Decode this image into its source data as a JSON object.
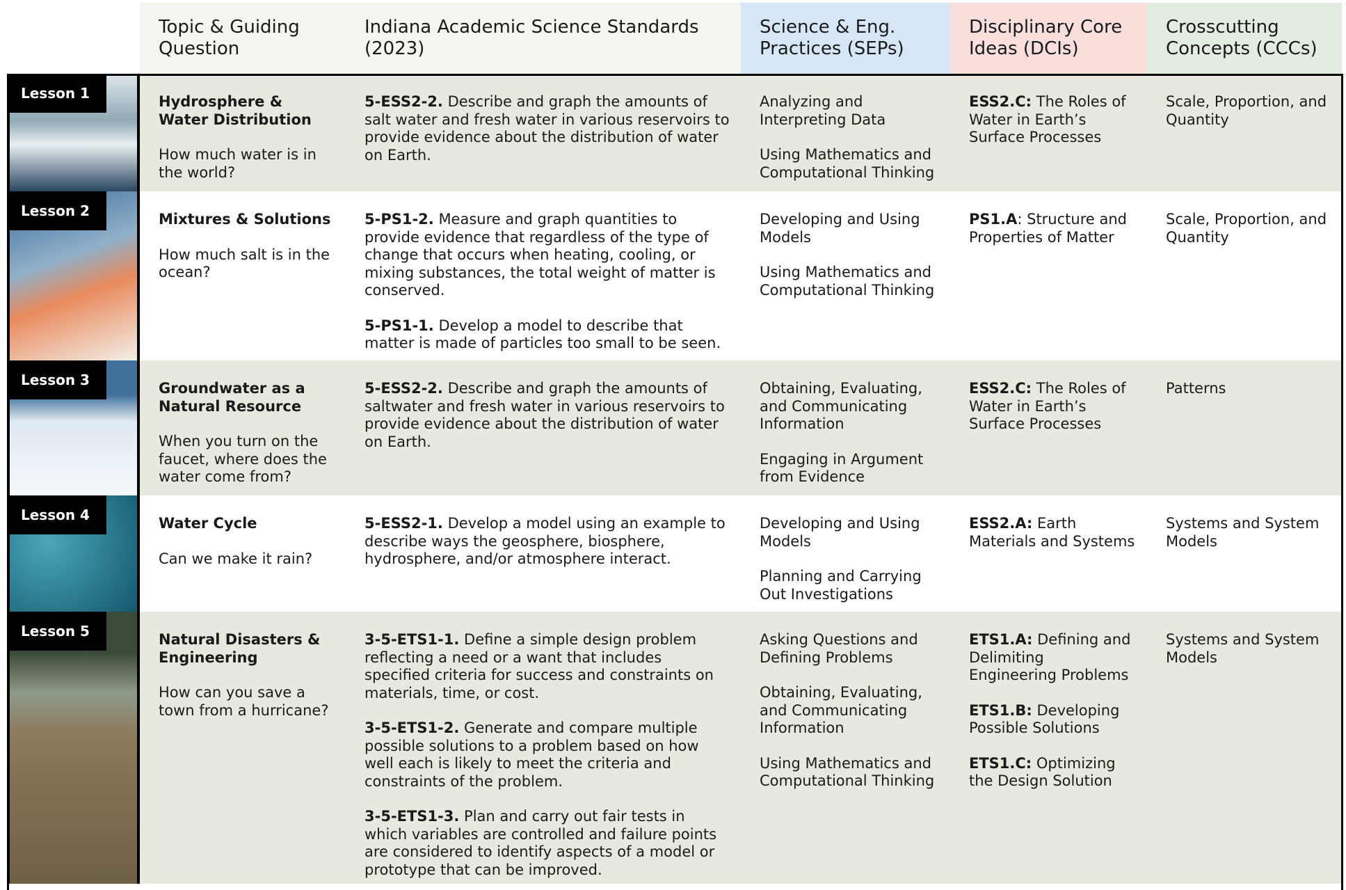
{
  "header": {
    "columns": [
      "Topic & Guiding Question",
      "Indiana Academic Science Standards (2023)",
      "Science & Eng. Practices (SEPs)",
      "Disciplinary Core Ideas (DCIs)",
      "Crosscutting Concepts (CCCs)"
    ]
  },
  "rows": [
    {
      "lesson": "Lesson 1",
      "topic": "Hydrosphere & Water Distribution",
      "question": "How much water is in the world?",
      "standards": [
        {
          "code": "5-ESS2-2.",
          "text": " Describe and graph the amounts of salt water and fresh water in various reservoirs to provide evidence about the distribution of water on Earth."
        }
      ],
      "seps": [
        "Analyzing and Interpreting Data",
        "Using Mathematics and Computational Thinking"
      ],
      "dcis": [
        {
          "code": "ESS2.C:",
          "text": " The Roles of Water in Earth’s Surface Processes"
        }
      ],
      "cccs": [
        "Scale, Proportion, and Quantity"
      ]
    },
    {
      "lesson": "Lesson 2",
      "topic": "Mixtures & Solutions",
      "question": "How much salt is in the ocean?",
      "standards": [
        {
          "code": "5-PS1-2.",
          "text": " Measure and graph quantities to provide evidence that regardless of the type of change that occurs when heating, cooling, or mixing substances, the total weight of matter is conserved."
        },
        {
          "code": "5-PS1-1.",
          "text": " Develop a model to describe that matter is made of particles too small to be seen."
        }
      ],
      "seps": [
        "Developing and Using Models",
        "Using Mathematics and Computational Thinking"
      ],
      "dcis": [
        {
          "code": "PS1.A",
          "text": ": Structure and Properties of Matter"
        }
      ],
      "cccs": [
        "Scale, Proportion, and Quantity"
      ]
    },
    {
      "lesson": "Lesson 3",
      "topic": "Groundwater as a Natural Resource",
      "question": "When you turn on the faucet, where does the water come from?",
      "standards": [
        {
          "code": "5-ESS2-2.",
          "text": " Describe and graph the amounts of saltwater and fresh water in various reservoirs to provide evidence about the distribution of water on Earth."
        }
      ],
      "seps": [
        "Obtaining, Evaluating, and Communicating Information",
        "Engaging in Argument from Evidence"
      ],
      "dcis": [
        {
          "code": "ESS2.C:",
          "text": " The Roles of Water in Earth’s Surface Processes"
        }
      ],
      "cccs": [
        "Patterns"
      ]
    },
    {
      "lesson": "Lesson 4",
      "topic": "Water Cycle",
      "question": "Can we make it rain?",
      "standards": [
        {
          "code": "5-ESS2-1.",
          "text": " Develop a model using an example to describe ways the geosphere, biosphere, hydrosphere, and/or atmosphere interact."
        }
      ],
      "seps": [
        "Developing and Using Models",
        "Planning and Carrying Out Investigations"
      ],
      "dcis": [
        {
          "code": "ESS2.A:",
          "text": " Earth Materials and Systems"
        }
      ],
      "cccs": [
        "Systems and System Models"
      ]
    },
    {
      "lesson": "Lesson 5",
      "topic": "Natural Disasters & Engineering",
      "question": "How can you save a town from a hurricane?",
      "standards": [
        {
          "code": "3-5-ETS1-1.",
          "text": " Define a simple design problem reflecting a need or a want that includes specified criteria for success and constraints on materials, time, or cost."
        },
        {
          "code": "3-5-ETS1-2.",
          "text": " Generate and compare multiple possible solutions to a problem based on how well each is likely to meet the criteria and constraints of the problem."
        },
        {
          "code": "3-5-ETS1-3.",
          "text": " Plan and carry out fair tests in which variables are controlled and failure points are considered to identify aspects of a model or prototype that can be improved."
        }
      ],
      "seps": [
        "Asking Questions and Defining Problems",
        "Obtaining, Evaluating, and Communicating Information",
        "Using Mathematics and Computational Thinking"
      ],
      "dcis": [
        {
          "code": "ETS1.A:",
          "text": " Defining and Delimiting Engineering Problems"
        },
        {
          "code": "ETS1.B:",
          "text": " Developing Possible Solutions"
        },
        {
          "code": "ETS1.C:",
          "text": " Optimizing the Design Solution"
        }
      ],
      "cccs": [
        "Systems and System Models"
      ]
    }
  ]
}
